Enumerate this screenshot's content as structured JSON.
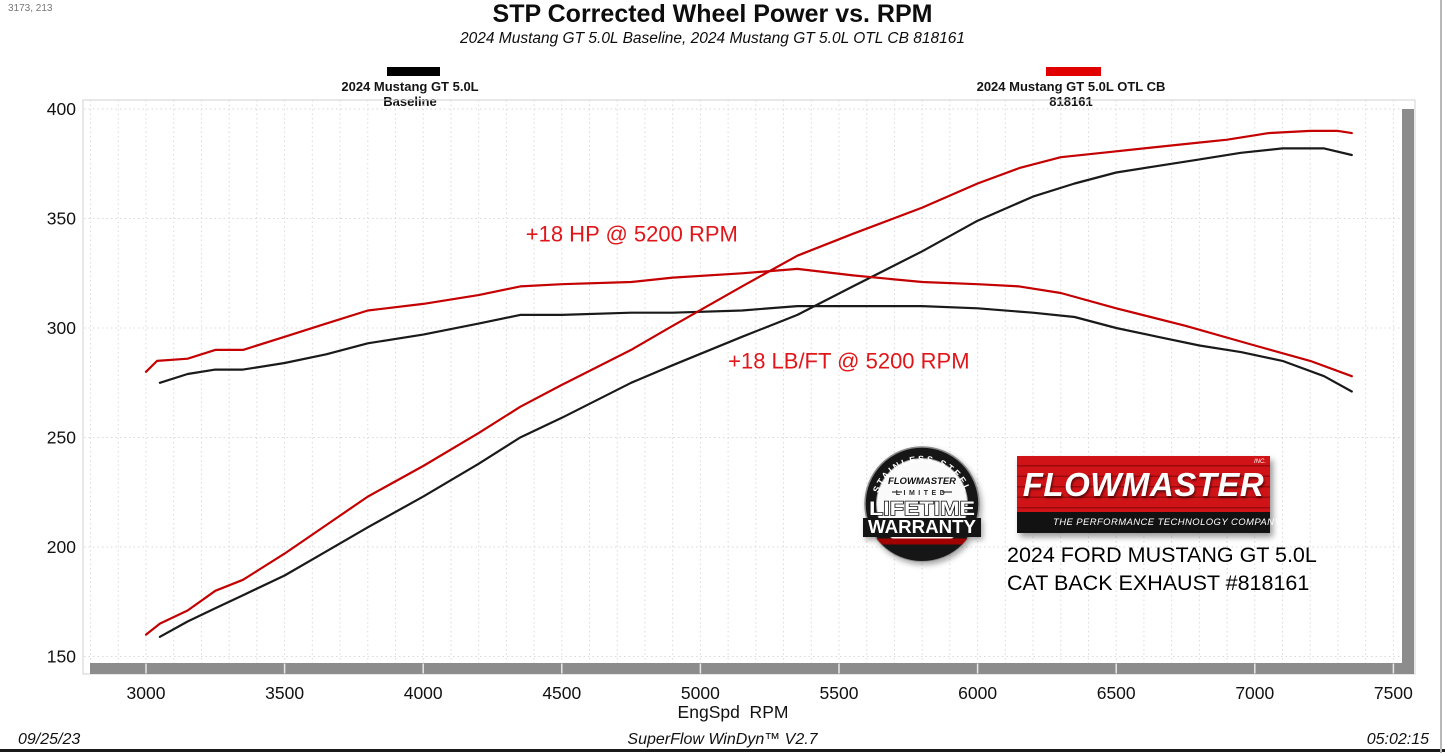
{
  "window": {
    "coords_readout": "3173, 213",
    "footer": {
      "date": "09/25/23",
      "app": "SuperFlow WinDyn™ V2.7",
      "time": "05:02:15"
    }
  },
  "chart_data": {
    "type": "line",
    "title": "STP Corrected Wheel Power vs. RPM",
    "subtitle": "2024 Mustang GT 5.0L Baseline, 2024 Mustang GT 5.0L OTL CB 818161",
    "xlabel": "EngSpd  RPM",
    "ylabel": "",
    "x_ticks": [
      3000,
      3500,
      4000,
      4500,
      5000,
      5500,
      6000,
      6500,
      7000,
      7500
    ],
    "y_ticks": [
      150,
      200,
      250,
      300,
      350,
      400
    ],
    "x_range": [
      2772,
      7575
    ],
    "y_range": [
      142,
      404
    ],
    "grid": {
      "x_minor_step": 100,
      "style": "dotted"
    },
    "legend_position": "top",
    "legend": [
      {
        "label": "2024 Mustang GT 5.0L Baseline",
        "color": "#000000"
      },
      {
        "label": "2024 Mustang GT 5.0L OTL CB 818161",
        "color": "#e00000"
      }
    ],
    "annotations": [
      {
        "text": "+18 HP @ 5200 RPM",
        "rpm": 4370,
        "value": 342
      },
      {
        "text": "+18 LB/FT @ 5200 RPM",
        "rpm": 5100,
        "value": 284
      }
    ],
    "series": [
      {
        "name": "Baseline — Wheel Power (HP)",
        "color": "#1a1a1a",
        "x": [
          3050,
          3150,
          3250,
          3350,
          3500,
          3650,
          3800,
          4000,
          4200,
          4350,
          4500,
          4750,
          4900,
          5150,
          5350,
          5550,
          5800,
          6000,
          6200,
          6350,
          6500,
          6650,
          6800,
          6950,
          7100,
          7250,
          7350
        ],
        "y": [
          159,
          166,
          172,
          178,
          187,
          198,
          209,
          223,
          238,
          250,
          259,
          275,
          283,
          296,
          306,
          319,
          335,
          349,
          360,
          366,
          371,
          374,
          377,
          380,
          382,
          382,
          379
        ]
      },
      {
        "name": "Baseline — Wheel Torque (LB/FT)",
        "color": "#1a1a1a",
        "x": [
          3050,
          3150,
          3250,
          3350,
          3500,
          3650,
          3800,
          4000,
          4200,
          4350,
          4500,
          4750,
          4900,
          5150,
          5350,
          5550,
          5800,
          6000,
          6200,
          6350,
          6500,
          6650,
          6800,
          6950,
          7100,
          7250,
          7350
        ],
        "y": [
          275,
          279,
          281,
          281,
          284,
          288,
          293,
          297,
          302,
          306,
          306,
          307,
          307,
          308,
          310,
          310,
          310,
          309,
          307,
          305,
          300,
          296,
          292,
          289,
          285,
          278,
          271
        ]
      },
      {
        "name": "OTL CB 818161 — Wheel Power (HP)",
        "color": "#c40000",
        "x": [
          3000,
          3050,
          3150,
          3250,
          3350,
          3500,
          3650,
          3800,
          4000,
          4200,
          4350,
          4500,
          4750,
          4900,
          5150,
          5350,
          5550,
          5800,
          6000,
          6150,
          6300,
          6450,
          6600,
          6750,
          6900,
          7050,
          7200,
          7300,
          7350
        ],
        "y": [
          160,
          165,
          171,
          180,
          185,
          197,
          210,
          223,
          237,
          252,
          264,
          274,
          290,
          301,
          319,
          333,
          343,
          355,
          366,
          373,
          378,
          380,
          382,
          384,
          386,
          389,
          390,
          390,
          389
        ]
      },
      {
        "name": "OTL CB 818161 — Wheel Torque (LB/FT)",
        "color": "#c40000",
        "x": [
          3000,
          3040,
          3150,
          3250,
          3350,
          3500,
          3650,
          3800,
          4000,
          4200,
          4350,
          4500,
          4750,
          4900,
          5150,
          5350,
          5550,
          5800,
          6000,
          6150,
          6300,
          6500,
          6750,
          7000,
          7200,
          7350
        ],
        "y": [
          280,
          285,
          286,
          290,
          290,
          296,
          302,
          308,
          311,
          315,
          319,
          320,
          321,
          323,
          325,
          327,
          324,
          321,
          320,
          319,
          316,
          309,
          301,
          292,
          285,
          278
        ]
      }
    ]
  },
  "branding": {
    "badge": {
      "arc_text": "STAINLESS STEEL",
      "script": "FLOWMASTER",
      "limited": "LIMITED",
      "lifetime": "LIFETIME",
      "warranty": "WARRANTY"
    },
    "logo_name": "FLOWMASTER",
    "logo_inc": "INC.",
    "logo_tagline": "THE PERFORMANCE TECHNOLOGY COMPANY",
    "product_line1": "2024 FORD MUSTANG GT 5.0L",
    "product_line2": "CAT BACK EXHAUST #818161"
  }
}
